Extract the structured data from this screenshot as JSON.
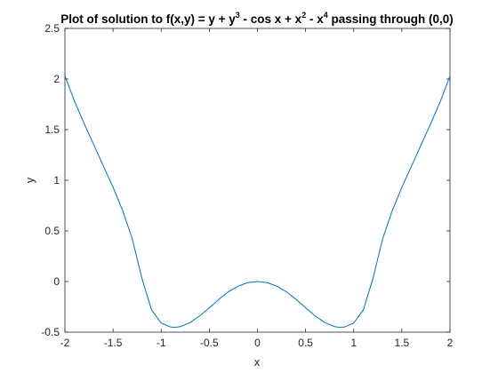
{
  "chart_data": {
    "type": "line",
    "title": {
      "t1": "Plot of solution to f(x,y) = y + y",
      "s1": "3",
      "t2": " - cos x + x",
      "s2": "2",
      "t3": " - x",
      "s3": "4",
      "t4": " passing through (0,0)"
    },
    "xlabel": "x",
    "ylabel": "y",
    "xlim": [
      -2,
      2
    ],
    "ylim": [
      -0.5,
      2.5
    ],
    "x_ticks": [
      "-2",
      "-1.5",
      "-1",
      "-0.5",
      "0",
      "0.5",
      "1",
      "1.5",
      "2"
    ],
    "y_ticks": [
      "-0.5",
      "0",
      "0.5",
      "1",
      "1.5",
      "2",
      "2.5"
    ],
    "grid": false,
    "series": [
      {
        "color": "#0072BD",
        "x": [
          -2.0,
          -1.9,
          -1.8,
          -1.7,
          -1.6,
          -1.5,
          -1.4,
          -1.3,
          -1.2,
          -1.1,
          -1.0,
          -0.9,
          -0.85,
          -0.8,
          -0.7,
          -0.6,
          -0.5,
          -0.4,
          -0.3,
          -0.2,
          -0.1,
          0.0,
          0.1,
          0.2,
          0.3,
          0.4,
          0.5,
          0.6,
          0.7,
          0.8,
          0.85,
          0.9,
          1.0,
          1.1,
          1.2,
          1.3,
          1.4,
          1.5,
          1.6,
          1.7,
          1.8,
          1.9,
          2.0
        ],
        "y": [
          2.03,
          1.78,
          1.56,
          1.35,
          1.14,
          0.93,
          0.7,
          0.42,
          0.03,
          -0.28,
          -0.41,
          -0.45,
          -0.452,
          -0.445,
          -0.405,
          -0.34,
          -0.26,
          -0.175,
          -0.1,
          -0.045,
          -0.011,
          0.0,
          -0.011,
          -0.045,
          -0.1,
          -0.175,
          -0.26,
          -0.34,
          -0.405,
          -0.445,
          -0.452,
          -0.45,
          -0.41,
          -0.28,
          0.03,
          0.42,
          0.7,
          0.93,
          1.14,
          1.35,
          1.56,
          1.78,
          2.03
        ]
      }
    ]
  }
}
